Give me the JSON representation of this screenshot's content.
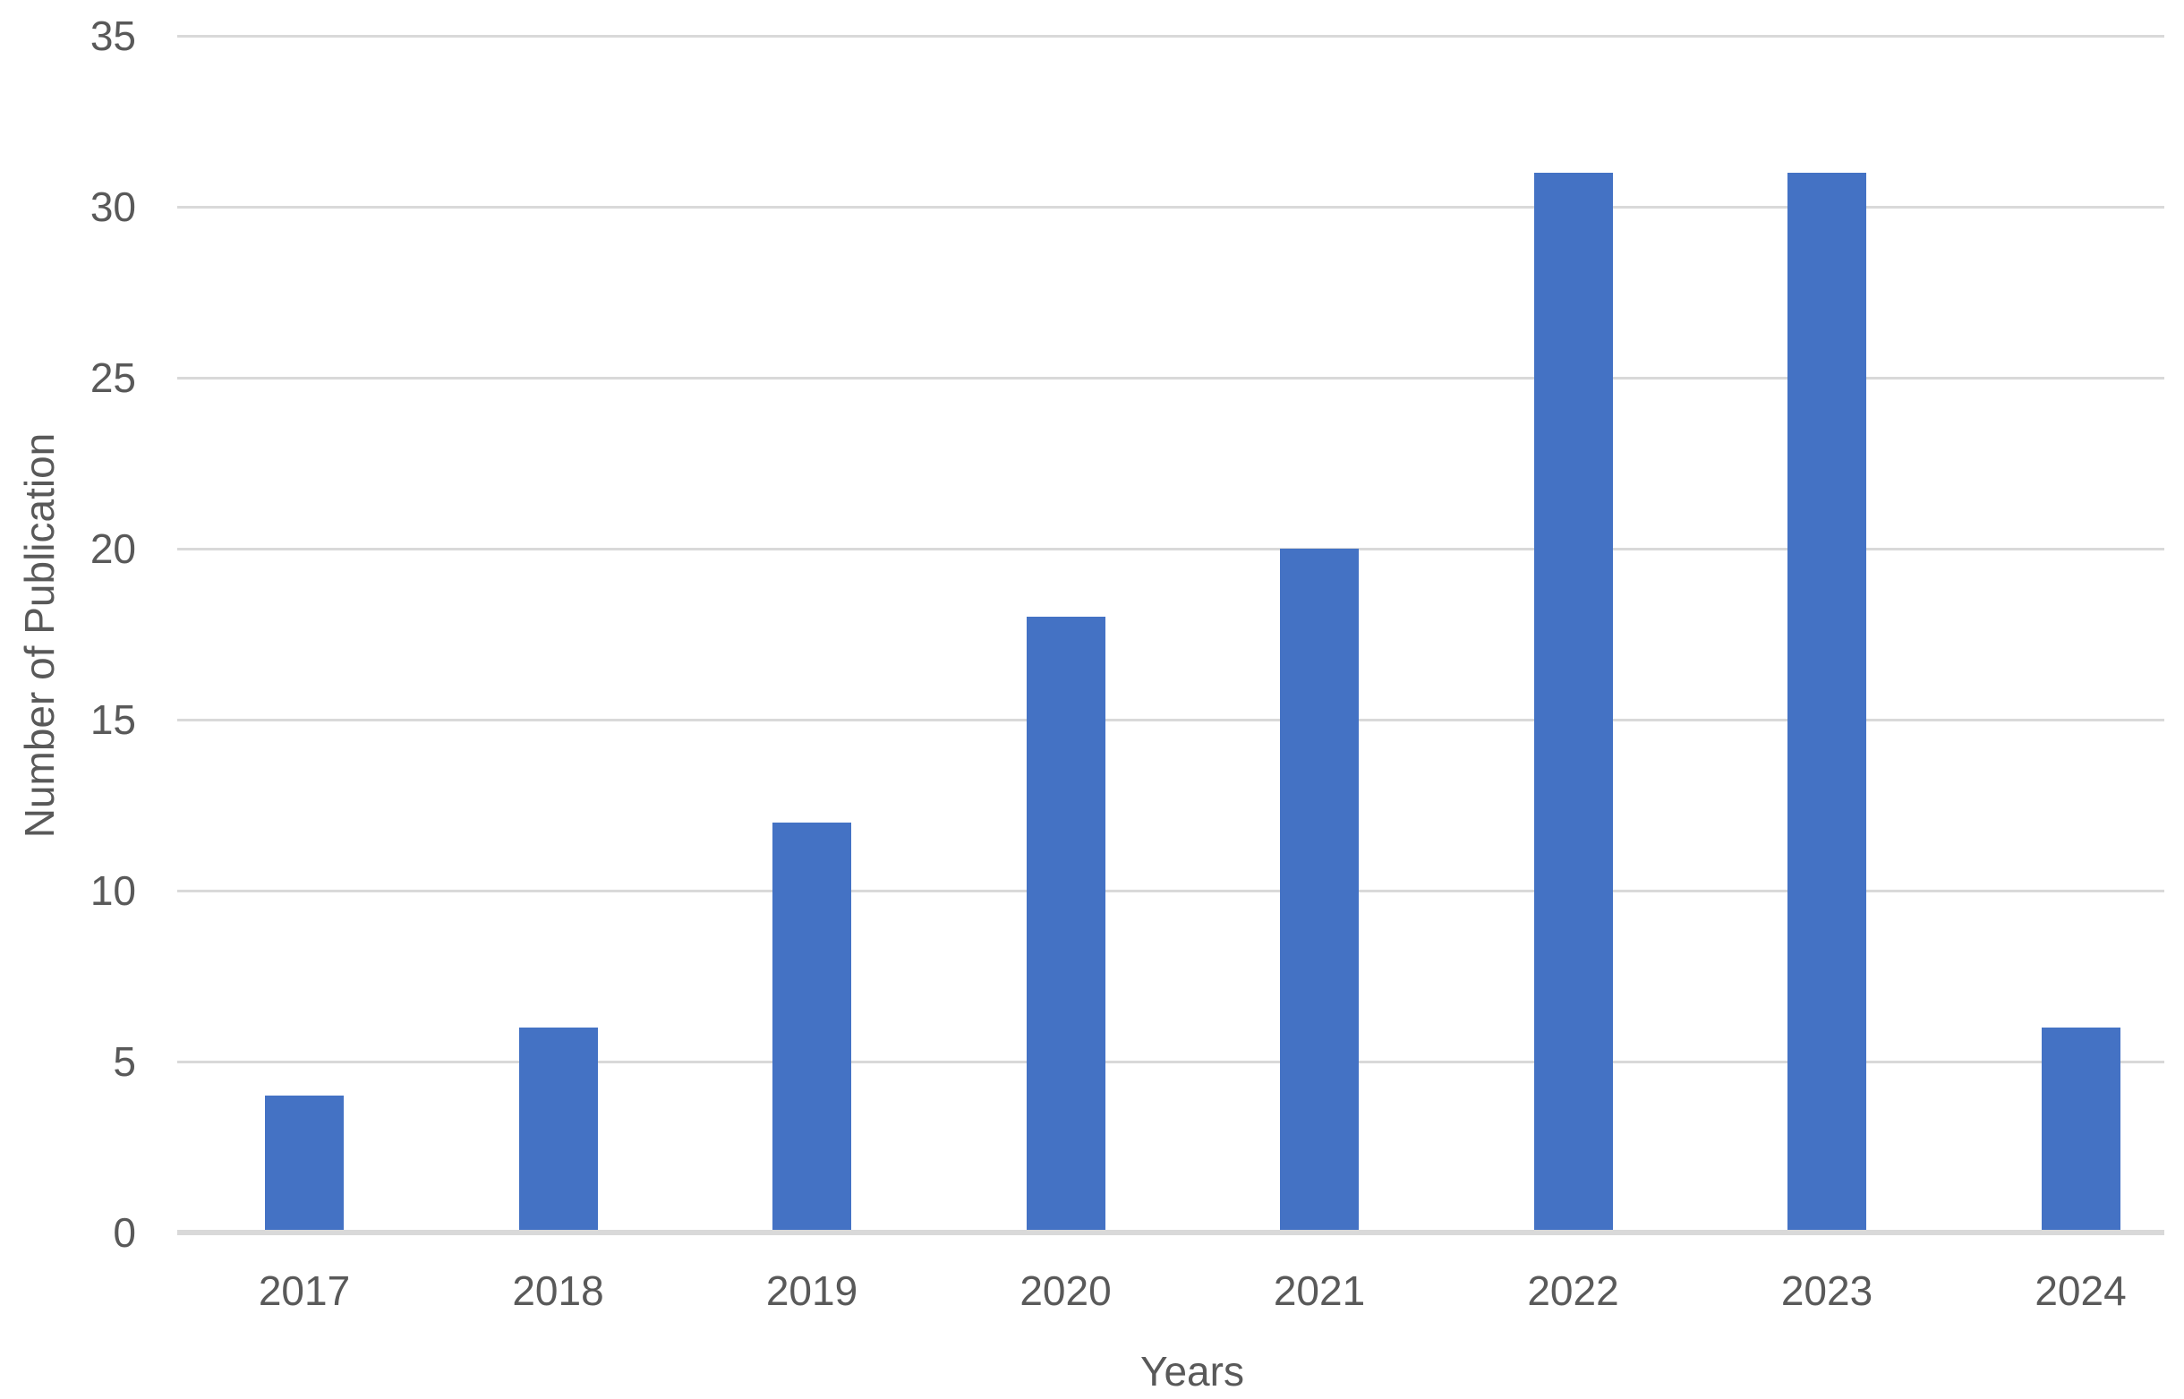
{
  "chart_data": {
    "type": "bar",
    "title": "",
    "categories": [
      "2017",
      "2018",
      "2019",
      "2020",
      "2021",
      "2022",
      "2023",
      "2024"
    ],
    "values": [
      4,
      6,
      12,
      18,
      20,
      31,
      31,
      6
    ],
    "xlabel": "Years",
    "ylabel": "Number of Publication",
    "ylim": [
      0,
      35
    ],
    "ytick_step": 5,
    "ytick_labels": [
      "0",
      "5",
      "10",
      "15",
      "20",
      "25",
      "30",
      "35"
    ],
    "grid": true,
    "legend_position": "none",
    "colors": {
      "bar": "#4472C4",
      "gridline": "#D9D9D9",
      "axis_line": "#D9D9D9",
      "text": "#595959",
      "background": "#FFFFFF"
    }
  }
}
